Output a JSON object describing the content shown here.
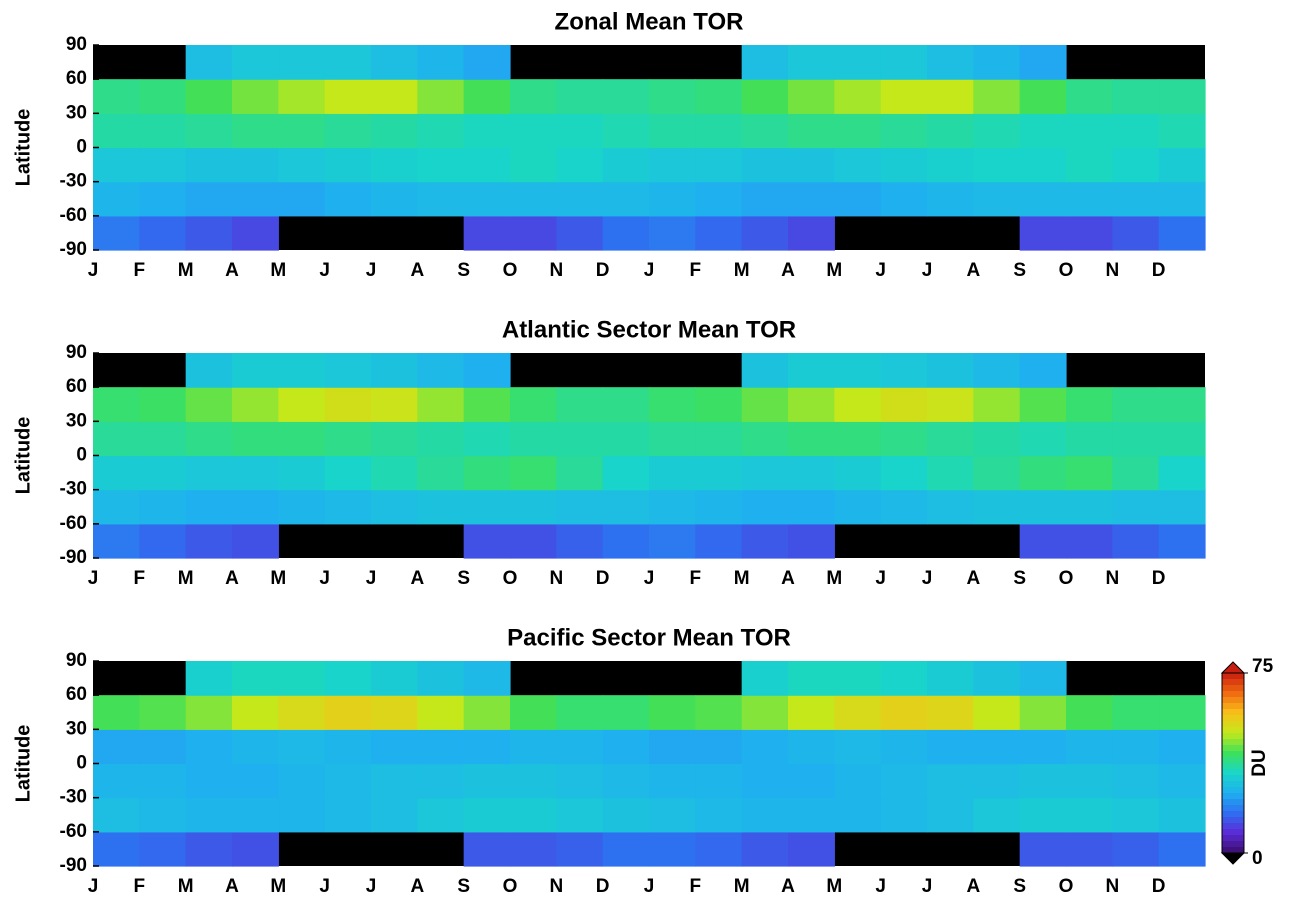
{
  "chart_data": [
    {
      "type": "heatmap",
      "title": "Zonal Mean TOR",
      "y_label": "Latitude",
      "categories": [
        "J",
        "F",
        "M",
        "A",
        "M",
        "J",
        "J",
        "A",
        "S",
        "O",
        "N",
        "D",
        "J",
        "F",
        "M",
        "A",
        "M",
        "J",
        "J",
        "A",
        "S",
        "O",
        "N",
        "D"
      ],
      "ylim": [
        -90,
        90
      ],
      "yticks": [
        90,
        60,
        30,
        0,
        -30,
        -60,
        -90
      ],
      "ybins": [
        -90,
        -60,
        -30,
        0,
        30,
        60,
        90
      ],
      "zlim": [
        0,
        75
      ],
      "z": [
        [
          18,
          16,
          14,
          12,
          null,
          null,
          null,
          null,
          12,
          12,
          14,
          17,
          18,
          16,
          14,
          12,
          null,
          null,
          null,
          null,
          12,
          12,
          14,
          17
        ],
        [
          26,
          25,
          24,
          24,
          24,
          25,
          26,
          27,
          27,
          27,
          27,
          27,
          26,
          25,
          24,
          24,
          24,
          25,
          26,
          27,
          27,
          27,
          27,
          27
        ],
        [
          30,
          30,
          29,
          29,
          30,
          31,
          32,
          33,
          33,
          34,
          33,
          31,
          30,
          30,
          29,
          29,
          30,
          31,
          32,
          33,
          33,
          34,
          33,
          31
        ],
        [
          36,
          36,
          37,
          38,
          38,
          37,
          36,
          35,
          34,
          34,
          34,
          35,
          36,
          36,
          37,
          38,
          38,
          37,
          36,
          35,
          34,
          34,
          34,
          35
        ],
        [
          38,
          39,
          42,
          45,
          48,
          50,
          50,
          46,
          42,
          38,
          37,
          37,
          38,
          39,
          42,
          45,
          48,
          50,
          50,
          46,
          42,
          38,
          37,
          37
        ],
        [
          null,
          null,
          28,
          30,
          30,
          30,
          28,
          26,
          24,
          null,
          null,
          null,
          null,
          null,
          28,
          30,
          30,
          30,
          28,
          26,
          24,
          null,
          null,
          null
        ]
      ]
    },
    {
      "type": "heatmap",
      "title": "Atlantic Sector Mean TOR",
      "y_label": "Latitude",
      "categories": [
        "J",
        "F",
        "M",
        "A",
        "M",
        "J",
        "J",
        "A",
        "S",
        "O",
        "N",
        "D",
        "J",
        "F",
        "M",
        "A",
        "M",
        "J",
        "J",
        "A",
        "S",
        "O",
        "N",
        "D"
      ],
      "ylim": [
        -90,
        90
      ],
      "yticks": [
        90,
        60,
        30,
        0,
        -30,
        -60,
        -90
      ],
      "ybins": [
        -90,
        -60,
        -30,
        0,
        30,
        60,
        90
      ],
      "zlim": [
        0,
        75
      ],
      "z": [
        [
          18,
          16,
          14,
          13,
          null,
          null,
          null,
          null,
          13,
          13,
          15,
          17,
          18,
          16,
          14,
          13,
          null,
          null,
          null,
          null,
          13,
          13,
          15,
          17
        ],
        [
          27,
          26,
          25,
          25,
          26,
          27,
          28,
          29,
          29,
          29,
          28,
          28,
          27,
          26,
          25,
          25,
          26,
          27,
          28,
          29,
          29,
          29,
          28,
          28
        ],
        [
          31,
          31,
          30,
          30,
          31,
          33,
          35,
          37,
          39,
          40,
          37,
          33,
          31,
          31,
          30,
          30,
          31,
          33,
          35,
          37,
          39,
          40,
          37,
          33
        ],
        [
          37,
          37,
          38,
          39,
          39,
          38,
          37,
          36,
          35,
          36,
          36,
          36,
          37,
          37,
          38,
          39,
          39,
          38,
          37,
          36,
          35,
          36,
          36,
          36
        ],
        [
          40,
          41,
          44,
          47,
          50,
          52,
          51,
          47,
          43,
          40,
          38,
          38,
          40,
          41,
          44,
          47,
          50,
          52,
          51,
          47,
          43,
          40,
          38,
          38
        ],
        [
          null,
          null,
          29,
          31,
          31,
          30,
          29,
          27,
          25,
          null,
          null,
          null,
          null,
          null,
          29,
          31,
          31,
          30,
          29,
          27,
          25,
          null,
          null,
          null
        ]
      ]
    },
    {
      "type": "heatmap",
      "title": "Pacific Sector Mean TOR",
      "y_label": "Latitude",
      "categories": [
        "J",
        "F",
        "M",
        "A",
        "M",
        "J",
        "J",
        "A",
        "S",
        "O",
        "N",
        "D",
        "J",
        "F",
        "M",
        "A",
        "M",
        "J",
        "J",
        "A",
        "S",
        "O",
        "N",
        "D"
      ],
      "ylim": [
        -90,
        90
      ],
      "yticks": [
        90,
        60,
        30,
        0,
        -30,
        -60,
        -90
      ],
      "ybins": [
        -90,
        -60,
        -30,
        0,
        30,
        60,
        90
      ],
      "zlim": [
        0,
        75
      ],
      "zticks": [
        0,
        75
      ],
      "colorbar_label": "DU",
      "colors": [
        "#3a0c6b",
        "#5b2bd8",
        "#2f6ef0",
        "#1fb0f0",
        "#19d6c8",
        "#3ee05a",
        "#c4e81a",
        "#f8c01a",
        "#f06a10",
        "#c81e10"
      ],
      "z": [
        [
          17,
          16,
          14,
          13,
          null,
          null,
          null,
          null,
          14,
          14,
          15,
          17,
          17,
          16,
          14,
          13,
          null,
          null,
          null,
          null,
          14,
          14,
          15,
          17
        ],
        [
          28,
          27,
          26,
          26,
          26,
          27,
          28,
          30,
          31,
          31,
          30,
          29,
          28,
          27,
          26,
          26,
          26,
          27,
          28,
          30,
          31,
          31,
          30,
          29
        ],
        [
          26,
          26,
          25,
          25,
          26,
          27,
          28,
          28,
          29,
          29,
          28,
          27,
          26,
          26,
          25,
          25,
          26,
          27,
          28,
          28,
          29,
          29,
          28,
          27
        ],
        [
          24,
          24,
          25,
          26,
          27,
          26,
          25,
          25,
          25,
          26,
          26,
          25,
          24,
          24,
          25,
          26,
          27,
          26,
          25,
          25,
          25,
          26,
          26,
          25
        ],
        [
          42,
          43,
          46,
          50,
          53,
          55,
          54,
          50,
          46,
          42,
          40,
          40,
          42,
          43,
          46,
          50,
          53,
          55,
          54,
          50,
          46,
          42,
          40,
          40
        ],
        [
          null,
          null,
          32,
          34,
          34,
          33,
          31,
          29,
          27,
          null,
          null,
          null,
          null,
          null,
          32,
          34,
          34,
          33,
          31,
          29,
          27,
          null,
          null,
          null
        ]
      ]
    }
  ]
}
